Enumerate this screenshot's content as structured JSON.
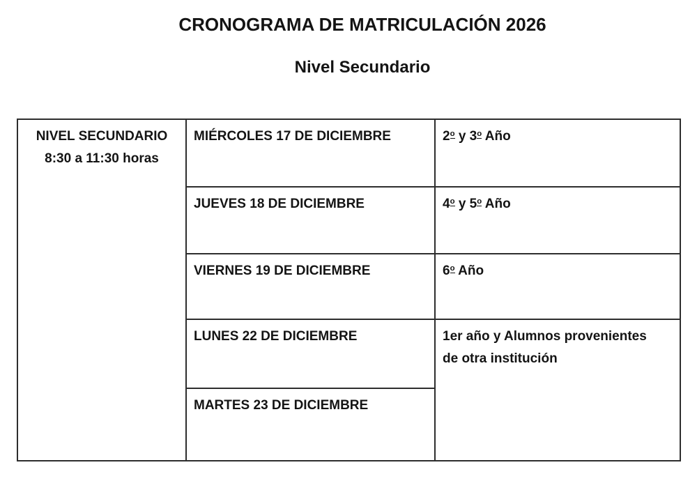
{
  "header": {
    "title": "CRONOGRAMA DE MATRICULACIÓN 2026",
    "subtitle": "Nivel Secundario"
  },
  "table": {
    "level_cell": "NIVEL SECUNDARIO\n8:30 a 11:30 horas",
    "rows": [
      {
        "date": "MIÉRCOLES 17 DE DICIEMBRE",
        "group": "2º y 3º Año"
      },
      {
        "date": "JUEVES 18 DE DICIEMBRE",
        "group": "4º y 5º Año"
      },
      {
        "date": "VIERNES 19 DE DICIEMBRE",
        "group": "6º Año"
      },
      {
        "date": "LUNES 22 DE DICIEMBRE",
        "group": "1er año y Alumnos provenientes\nde otra institución"
      },
      {
        "date": "MARTES 23 DE DICIEMBRE"
      }
    ]
  },
  "colors": {
    "text": "#141414",
    "border": "#2d2d2d",
    "background": "#ffffff"
  }
}
